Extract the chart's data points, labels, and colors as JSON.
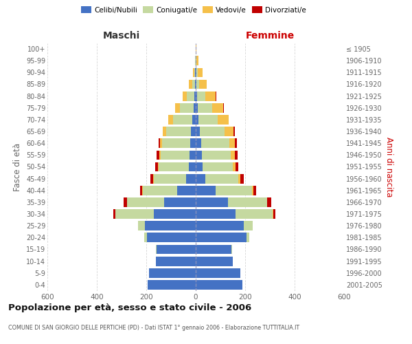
{
  "age_groups": [
    "100+",
    "95-99",
    "90-94",
    "85-89",
    "80-84",
    "75-79",
    "70-74",
    "65-69",
    "60-64",
    "55-59",
    "50-54",
    "45-49",
    "40-44",
    "35-39",
    "30-34",
    "25-29",
    "20-24",
    "15-19",
    "10-14",
    "5-9",
    "0-4"
  ],
  "birth_years": [
    "≤ 1905",
    "1906-1910",
    "1911-1915",
    "1916-1920",
    "1921-1925",
    "1926-1930",
    "1931-1935",
    "1936-1940",
    "1941-1945",
    "1946-1950",
    "1951-1955",
    "1956-1960",
    "1961-1965",
    "1966-1970",
    "1971-1975",
    "1976-1980",
    "1981-1985",
    "1986-1990",
    "1991-1995",
    "1996-2000",
    "2001-2005"
  ],
  "maschi_celibi": [
    1,
    1,
    2,
    4,
    5,
    9,
    14,
    20,
    22,
    25,
    28,
    40,
    75,
    128,
    170,
    205,
    198,
    158,
    160,
    188,
    195
  ],
  "maschi_coniugati": [
    0,
    1,
    4,
    10,
    30,
    55,
    78,
    100,
    115,
    118,
    122,
    130,
    140,
    150,
    155,
    28,
    10,
    2,
    0,
    0,
    0
  ],
  "maschi_vedovi": [
    0,
    0,
    5,
    14,
    18,
    18,
    18,
    14,
    8,
    4,
    4,
    2,
    2,
    0,
    0,
    0,
    0,
    0,
    0,
    0,
    0
  ],
  "maschi_divorziati": [
    0,
    0,
    0,
    0,
    0,
    0,
    0,
    0,
    5,
    10,
    10,
    12,
    8,
    14,
    8,
    0,
    0,
    0,
    0,
    0,
    0
  ],
  "femmine_celibi": [
    1,
    1,
    3,
    4,
    5,
    8,
    12,
    18,
    22,
    25,
    28,
    38,
    80,
    130,
    160,
    195,
    205,
    145,
    150,
    180,
    188
  ],
  "femmine_coniugati": [
    0,
    1,
    4,
    10,
    35,
    58,
    78,
    100,
    115,
    118,
    122,
    135,
    148,
    158,
    152,
    35,
    12,
    2,
    0,
    0,
    0
  ],
  "femmine_vedovi": [
    2,
    8,
    22,
    30,
    40,
    46,
    42,
    36,
    22,
    15,
    10,
    7,
    4,
    2,
    1,
    0,
    0,
    0,
    0,
    0,
    0
  ],
  "femmine_divorziati": [
    0,
    0,
    0,
    0,
    2,
    2,
    2,
    5,
    8,
    12,
    12,
    15,
    12,
    15,
    10,
    0,
    0,
    0,
    0,
    0,
    0
  ],
  "color_celibi": "#4472C4",
  "color_coniugati": "#C5D9A0",
  "color_vedovi": "#F5C04A",
  "color_divorziati": "#C00000",
  "title": "Popolazione per età, sesso e stato civile - 2006",
  "subtitle": "COMUNE DI SAN GIORGIO DELLE PERTICHE (PD) - Dati ISTAT 1° gennaio 2006 - Elaborazione TUTTITALIA.IT",
  "xlabel_left": "Maschi",
  "xlabel_right": "Femmine",
  "ylabel_left": "Fasce di età",
  "ylabel_right": "Anni di nascita",
  "xlim": 600,
  "bg_color": "#ffffff",
  "grid_color": "#aaaaaa"
}
